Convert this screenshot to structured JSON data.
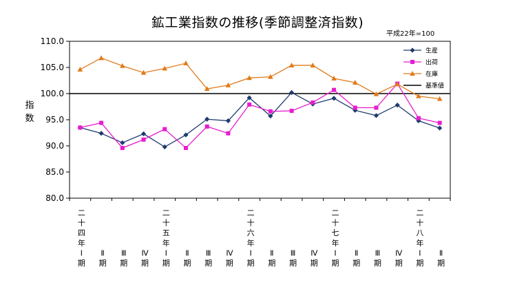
{
  "chart_data": {
    "type": "line",
    "title": "鉱工業指数の推移(季節調整済指数)",
    "base_note": "平成22年=100",
    "ylabel": "指数",
    "xlabel": "",
    "ylim": [
      80,
      110
    ],
    "yticks": [
      "110.0",
      "105.0",
      "100.0",
      "95.0",
      "90.0",
      "85.0",
      "80.0"
    ],
    "ytick_values": [
      110,
      105,
      100,
      95,
      90,
      85,
      80
    ],
    "reference_line": {
      "value": 100,
      "name": "基準値"
    },
    "grid": false,
    "legend_position": "top-right",
    "categories": [
      "二十四年Ⅰ期",
      "Ⅱ期",
      "Ⅲ期",
      "Ⅳ期",
      "二十五年Ⅰ期",
      "Ⅱ期",
      "Ⅲ期",
      "Ⅳ期",
      "二十六年Ⅰ期",
      "Ⅱ期",
      "Ⅲ期",
      "Ⅳ期",
      "二十七年Ⅰ期",
      "Ⅱ期",
      "Ⅲ期",
      "Ⅳ期",
      "二十八年Ⅰ期",
      "Ⅱ期"
    ],
    "series": [
      {
        "name": "生産",
        "color": "#1f3a6e",
        "marker": "diamond",
        "values": [
          93.5,
          92.4,
          90.6,
          92.3,
          89.8,
          92.1,
          95.1,
          94.8,
          99.2,
          95.7,
          100.2,
          98.0,
          99.1,
          96.8,
          95.8,
          97.8,
          94.8,
          93.4
        ]
      },
      {
        "name": "出荷",
        "color": "#e81ccf",
        "marker": "square",
        "values": [
          93.5,
          94.4,
          89.6,
          91.2,
          93.2,
          89.6,
          93.7,
          92.4,
          97.9,
          96.6,
          96.7,
          98.3,
          100.7,
          97.3,
          97.3,
          101.9,
          95.3,
          94.4
        ]
      },
      {
        "name": "在庫",
        "color": "#e07b1a",
        "marker": "triangle",
        "values": [
          104.6,
          106.8,
          105.3,
          104.0,
          104.8,
          105.8,
          100.9,
          101.6,
          103.0,
          103.2,
          105.4,
          105.4,
          102.9,
          102.1,
          99.9,
          101.8,
          99.5,
          99.0
        ]
      }
    ]
  },
  "category_labels": [
    {
      "era": "二十四年",
      "quarter": "Ⅰ",
      "suffix": "期"
    },
    {
      "era": "",
      "quarter": "Ⅱ",
      "suffix": "期"
    },
    {
      "era": "",
      "quarter": "Ⅲ",
      "suffix": "期"
    },
    {
      "era": "",
      "quarter": "Ⅳ",
      "suffix": "期"
    },
    {
      "era": "二十五年",
      "quarter": "Ⅰ",
      "suffix": "期"
    },
    {
      "era": "",
      "quarter": "Ⅱ",
      "suffix": "期"
    },
    {
      "era": "",
      "quarter": "Ⅲ",
      "suffix": "期"
    },
    {
      "era": "",
      "quarter": "Ⅳ",
      "suffix": "期"
    },
    {
      "era": "二十六年",
      "quarter": "Ⅰ",
      "suffix": "期"
    },
    {
      "era": "",
      "quarter": "Ⅱ",
      "suffix": "期"
    },
    {
      "era": "",
      "quarter": "Ⅲ",
      "suffix": "期"
    },
    {
      "era": "",
      "quarter": "Ⅳ",
      "suffix": "期"
    },
    {
      "era": "二十七年",
      "quarter": "Ⅰ",
      "suffix": "期"
    },
    {
      "era": "",
      "quarter": "Ⅱ",
      "suffix": "期"
    },
    {
      "era": "",
      "quarter": "Ⅲ",
      "suffix": "期"
    },
    {
      "era": "",
      "quarter": "Ⅳ",
      "suffix": "期"
    },
    {
      "era": "二十八年",
      "quarter": "Ⅰ",
      "suffix": "期"
    },
    {
      "era": "",
      "quarter": "Ⅱ",
      "suffix": "期"
    }
  ]
}
